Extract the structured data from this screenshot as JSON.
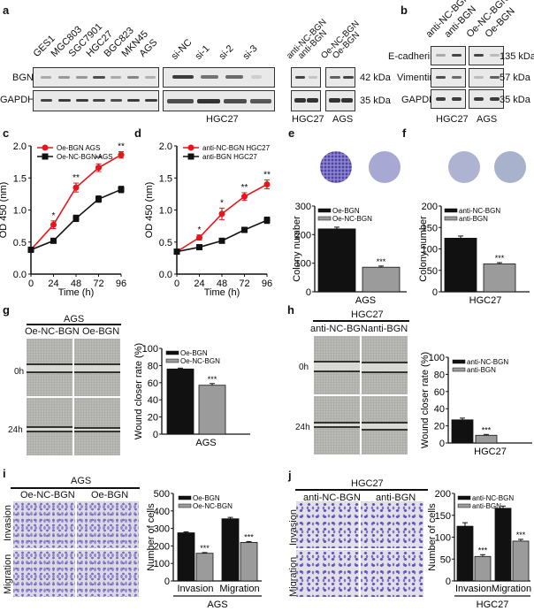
{
  "panels": {
    "a": {
      "label": "a",
      "cell_lines": [
        "GES1",
        "MGC803",
        "SGC7901",
        "HGC27",
        "BGC823",
        "MKN45",
        "AGS"
      ],
      "si_lanes": [
        "si-NC",
        "si-1",
        "si-2",
        "si-3"
      ],
      "si_group": "HGC27",
      "anti_lanes": [
        "anti-NC-BGN",
        "anti-BGN"
      ],
      "anti_group": "HGC27",
      "oe_lanes": [
        "Oe-NC-BGN",
        "Oe-BGN"
      ],
      "oe_group": "AGS",
      "rows": [
        {
          "name": "BGN",
          "kda": "42 kDa"
        },
        {
          "name": "GAPDH",
          "kda": "35 kDa"
        }
      ]
    },
    "b": {
      "label": "b",
      "lanes": [
        "anti-NC-BGN",
        "anti-BGN",
        "Oe-NC-BGN",
        "Oe-BGN"
      ],
      "groups": [
        "HGC27",
        "AGS"
      ],
      "rows": [
        {
          "name": "E-cadherin",
          "kda": "135 kDa"
        },
        {
          "name": "Vimentin",
          "kda": "57 kDa"
        },
        {
          "name": "GAPDH",
          "kda": "35 kDa"
        }
      ]
    },
    "c": {
      "label": "c"
    },
    "d": {
      "label": "d"
    },
    "e": {
      "label": "e",
      "group": "AGS"
    },
    "f": {
      "label": "f",
      "group": "HGC27"
    },
    "g": {
      "label": "g",
      "title": "AGS",
      "columns": [
        "Oe-NC-BGN",
        "Oe-BGN"
      ],
      "rows": [
        "0h",
        "24h"
      ],
      "group": "AGS"
    },
    "h": {
      "label": "h",
      "title": "HGC27",
      "columns": [
        "anti-NC-BGN",
        "anti-BGN"
      ],
      "rows": [
        "0h",
        "24h"
      ],
      "group": "HGC27"
    },
    "i": {
      "label": "i",
      "title": "AGS",
      "columns": [
        "Oe-NC-BGN",
        "Oe-BGN"
      ],
      "rows": [
        "Invasion",
        "Migration"
      ],
      "group": "AGS"
    },
    "j": {
      "label": "j",
      "title": "HGC27",
      "columns": [
        "anti-NC-BGN",
        "anti-BGN"
      ],
      "rows": [
        "Invasion",
        "Migration"
      ],
      "group": "HGC27"
    }
  },
  "colors": {
    "red": "#e8151b",
    "black": "#111111",
    "gray": "#9b9b9b"
  },
  "chart_data": [
    {
      "id": "c",
      "type": "line",
      "title": "",
      "xlabel": "Time (h)",
      "ylabel": "OD 450 (nm)",
      "x": [
        0,
        24,
        48,
        72,
        96
      ],
      "xlim": [
        0,
        96
      ],
      "ylim": [
        0,
        2.0
      ],
      "yticks": [
        0.0,
        0.5,
        1.0,
        1.5,
        2.0
      ],
      "series": [
        {
          "name": "Oe-BGN AGS",
          "color": "#e8151b",
          "marker": "circle",
          "values": [
            0.38,
            0.77,
            1.35,
            1.66,
            1.86
          ],
          "errors": [
            0.02,
            0.06,
            0.07,
            0.06,
            0.05
          ]
        },
        {
          "name": "Oe-NC-BGN AGS",
          "color": "#111111",
          "marker": "square",
          "values": [
            0.38,
            0.52,
            0.87,
            1.17,
            1.32
          ],
          "errors": [
            0.02,
            0.03,
            0.05,
            0.05,
            0.05
          ]
        }
      ],
      "annotations": [
        "*",
        "**",
        "**",
        "**"
      ],
      "legend_position": "top-left"
    },
    {
      "id": "d",
      "type": "line",
      "title": "",
      "xlabel": "Time (h)",
      "ylabel": "OD 450 (nm)",
      "x": [
        0,
        24,
        48,
        72,
        96
      ],
      "xlim": [
        0,
        96
      ],
      "ylim": [
        0,
        2.0
      ],
      "yticks": [
        0.0,
        0.5,
        1.0,
        1.5,
        2.0
      ],
      "series": [
        {
          "name": "anti-NC-BGN HGC27",
          "color": "#e8151b",
          "marker": "circle",
          "values": [
            0.35,
            0.57,
            0.94,
            1.21,
            1.4
          ],
          "errors": [
            0.02,
            0.04,
            0.09,
            0.06,
            0.07
          ]
        },
        {
          "name": "anti-BGN HGC27",
          "color": "#111111",
          "marker": "square",
          "values": [
            0.35,
            0.42,
            0.52,
            0.69,
            0.84
          ],
          "errors": [
            0.02,
            0.02,
            0.02,
            0.04,
            0.05
          ]
        }
      ],
      "annotations": [
        "*",
        "*",
        "**",
        "**"
      ],
      "legend_position": "top-left"
    },
    {
      "id": "e",
      "type": "bar",
      "xlabel": "AGS",
      "ylabel": "Colony number",
      "ylim": [
        0,
        300
      ],
      "yticks": [
        0,
        100,
        200,
        300
      ],
      "categories": [
        "Oe-BGN",
        "Oe-NC-BGN"
      ],
      "values": [
        220,
        86
      ],
      "errors": [
        6,
        4
      ],
      "colors": [
        "#111111",
        "#9b9b9b"
      ],
      "annotations": [
        "",
        "***"
      ]
    },
    {
      "id": "f",
      "type": "bar",
      "xlabel": "HGC27",
      "ylabel": "Colony number",
      "ylim": [
        0,
        200
      ],
      "yticks": [
        0,
        50,
        100,
        150,
        200
      ],
      "categories": [
        "anti-NC-BGN",
        "anti-BGN"
      ],
      "values": [
        125,
        65
      ],
      "errors": [
        5,
        3
      ],
      "colors": [
        "#111111",
        "#9b9b9b"
      ],
      "annotations": [
        "",
        "***"
      ]
    },
    {
      "id": "g",
      "type": "bar",
      "xlabel": "AGS",
      "ylabel": "Wound closer rate (%)",
      "ylim": [
        0,
        100
      ],
      "yticks": [
        0,
        20,
        40,
        60,
        80,
        100
      ],
      "categories": [
        "Oe-BGN",
        "Oe-NC-BGN"
      ],
      "values": [
        76,
        57
      ],
      "errors": [
        1,
        2
      ],
      "colors": [
        "#111111",
        "#9b9b9b"
      ],
      "annotations": [
        "",
        "***"
      ]
    },
    {
      "id": "h",
      "type": "bar",
      "xlabel": "HGC27",
      "ylabel": "Wound closer rate (%)",
      "ylim": [
        0,
        100
      ],
      "yticks": [
        0,
        20,
        40,
        60,
        80,
        100
      ],
      "categories": [
        "anti-NC-BGN",
        "anti-BGN"
      ],
      "values": [
        27,
        9
      ],
      "errors": [
        2,
        1
      ],
      "colors": [
        "#111111",
        "#9b9b9b"
      ],
      "annotations": [
        "",
        "***"
      ]
    },
    {
      "id": "i",
      "type": "bar",
      "xlabel": "AGS",
      "ylabel": "Number of cells",
      "ylim": [
        0,
        500
      ],
      "yticks": [
        0,
        100,
        200,
        300,
        400,
        500
      ],
      "categories": [
        "Invasion",
        "Migration"
      ],
      "series": [
        {
          "name": "Oe-BGN",
          "color": "#111111",
          "values": [
            275,
            355
          ],
          "errors": [
            5,
            8
          ]
        },
        {
          "name": "Oe-NC-BGN",
          "color": "#9b9b9b",
          "values": [
            158,
            220
          ],
          "errors": [
            4,
            5
          ]
        }
      ],
      "annotations": [
        "***",
        "***"
      ]
    },
    {
      "id": "j",
      "type": "bar",
      "xlabel": "HGC27",
      "ylabel": "Number of cells",
      "ylim": [
        0,
        200
      ],
      "yticks": [
        0,
        50,
        100,
        150,
        200
      ],
      "categories": [
        "Invasion",
        "Migration"
      ],
      "series": [
        {
          "name": "anti-NC-BGN",
          "color": "#111111",
          "values": [
            125,
            166
          ],
          "errors": [
            8,
            5
          ]
        },
        {
          "name": "anti-BGN",
          "color": "#9b9b9b",
          "values": [
            56,
            91
          ],
          "errors": [
            4,
            4
          ]
        }
      ],
      "annotations": [
        "***",
        "***"
      ]
    }
  ]
}
